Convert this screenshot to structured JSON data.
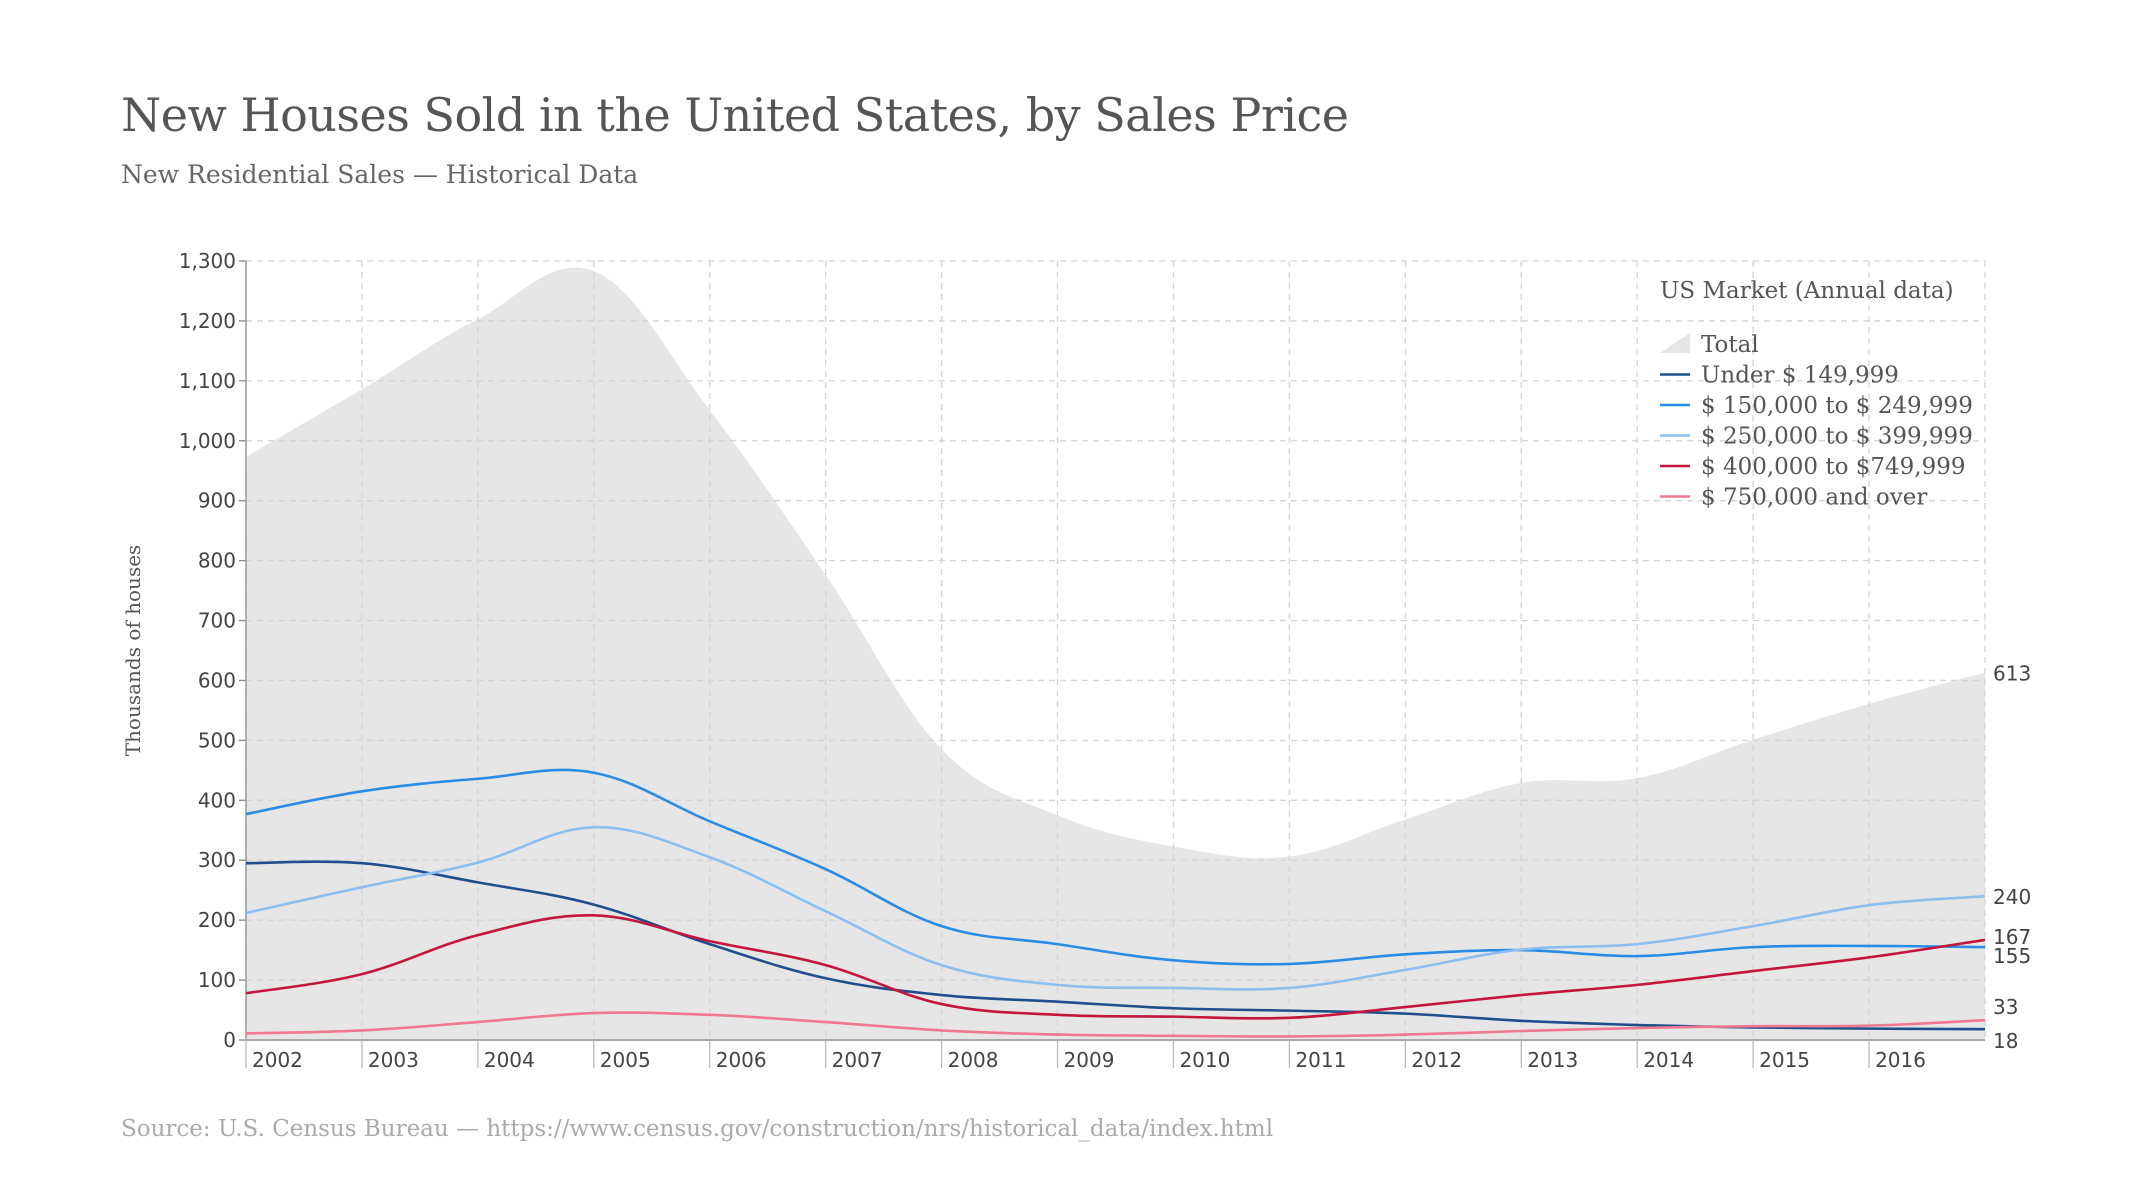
{
  "chart_data": {
    "type": "area",
    "title": "New Houses Sold in the United States, by Sales Price",
    "subtitle": "New Residential Sales — Historical Data",
    "source": "Source:  U.S. Census Bureau — https://www.census.gov/construction/nrs/historical_data/index.html",
    "ylabel": "Thousands of houses",
    "xlabel": "",
    "ylim": [
      0,
      1300
    ],
    "yticks": [
      "0",
      "100",
      "200",
      "300",
      "400",
      "500",
      "600",
      "700",
      "800",
      "900",
      "1,000",
      "1,100",
      "1,200",
      "1,300"
    ],
    "xtick_labels": [
      "2002",
      "2003",
      "2004",
      "2005",
      "2006",
      "2007",
      "2008",
      "2009",
      "2010",
      "2011",
      "2012",
      "2013",
      "2014",
      "2015",
      "2016"
    ],
    "x": [
      2002,
      2003,
      2004,
      2005,
      2006,
      2007,
      2008,
      2009,
      2010,
      2011,
      2012,
      2013,
      2014,
      2015,
      2016,
      2017
    ],
    "grid": true,
    "legend": {
      "title": "US Market (Annual data)",
      "position": "top-right"
    },
    "series": [
      {
        "name": "Total",
        "kind": "area",
        "color": "#e6e6e6",
        "end_label": "613",
        "values": [
          973,
          1086,
          1203,
          1283,
          1051,
          776,
          485,
          375,
          323,
          306,
          368,
          429,
          437,
          501,
          561,
          613
        ]
      },
      {
        "name": "Under $ 149,999",
        "kind": "line",
        "color": "#1f4e8c",
        "end_label": "18",
        "values": [
          295,
          295,
          263,
          226,
          160,
          103,
          75,
          64,
          53,
          49,
          44,
          32,
          25,
          21,
          19,
          18
        ]
      },
      {
        "name": "$ 150,000 to $ 249,999",
        "kind": "line",
        "color": "#2b8ce6",
        "end_label": "155",
        "values": [
          377,
          415,
          436,
          446,
          365,
          285,
          190,
          160,
          133,
          127,
          143,
          150,
          140,
          155,
          157,
          155
        ]
      },
      {
        "name": "$ 250,000 to $ 399,999",
        "kind": "line",
        "color": "#8cbef0",
        "end_label": "240",
        "values": [
          212,
          255,
          296,
          355,
          305,
          215,
          125,
          92,
          87,
          87,
          117,
          151,
          160,
          190,
          225,
          240
        ]
      },
      {
        "name": "$ 400,000 to $749,999",
        "kind": "line",
        "color": "#c4163c",
        "end_label": "167",
        "values": [
          78,
          110,
          175,
          208,
          165,
          125,
          60,
          42,
          39,
          37,
          55,
          75,
          92,
          115,
          138,
          167
        ]
      },
      {
        "name": "$ 750,000 and over",
        "kind": "line",
        "color": "#f07890",
        "end_label": "33",
        "values": [
          11,
          16,
          30,
          45,
          42,
          30,
          16,
          9,
          7,
          6,
          9,
          15,
          20,
          23,
          24,
          33
        ]
      }
    ]
  }
}
